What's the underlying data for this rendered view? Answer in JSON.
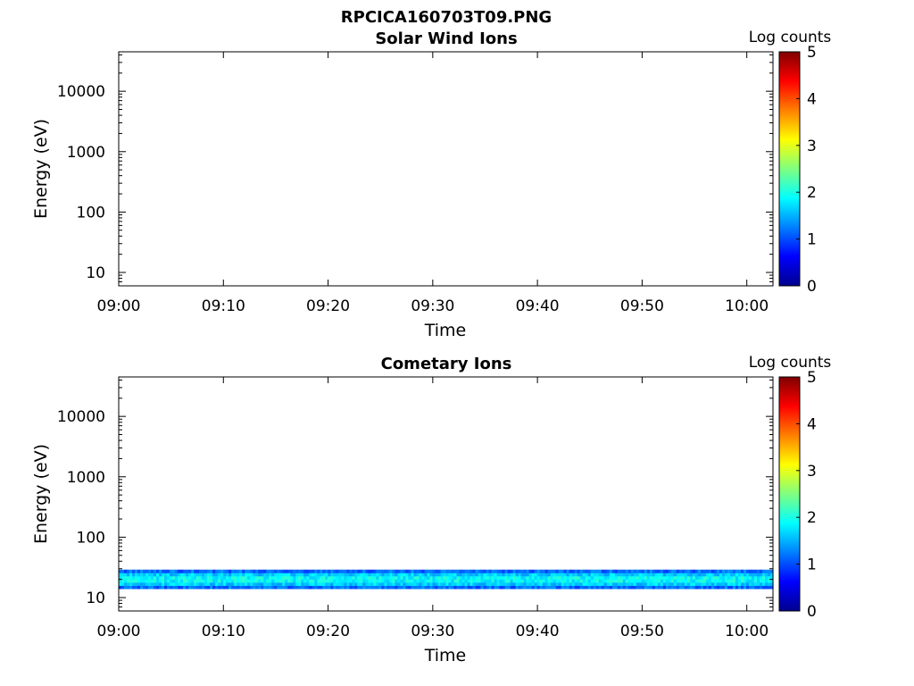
{
  "chart_data": {
    "title": "RPCICA160703T09.PNG",
    "type": "heatmap",
    "panels": [
      {
        "title": "Solar Wind Ions",
        "xlabel": "Time",
        "ylabel": "Energy (eV)",
        "x_tick_labels": [
          "09:00",
          "09:10",
          "09:20",
          "09:30",
          "09:40",
          "09:50",
          "10:00"
        ],
        "x_tick_minutes": [
          0,
          10,
          20,
          30,
          40,
          50,
          60
        ],
        "xlim_minutes": [
          0,
          62.5
        ],
        "y_scale": "log",
        "y_tick_labels": [
          "10",
          "100",
          "1000",
          "10000"
        ],
        "y_tick_values": [
          10,
          100,
          1000,
          10000
        ],
        "ylim": [
          6,
          45000
        ],
        "colorbar": {
          "label": "Log counts",
          "min": 0,
          "max": 5,
          "ticks": [
            "0",
            "1",
            "2",
            "3",
            "4",
            "5"
          ]
        },
        "bands": []
      },
      {
        "title": "Cometary Ions",
        "xlabel": "Time",
        "ylabel": "Energy (eV)",
        "x_tick_labels": [
          "09:00",
          "09:10",
          "09:20",
          "09:30",
          "09:40",
          "09:50",
          "10:00"
        ],
        "x_tick_minutes": [
          0,
          10,
          20,
          30,
          40,
          50,
          60
        ],
        "xlim_minutes": [
          0,
          62.5
        ],
        "y_scale": "log",
        "y_tick_labels": [
          "10",
          "100",
          "1000",
          "10000"
        ],
        "y_tick_values": [
          10,
          100,
          1000,
          10000
        ],
        "ylim": [
          6,
          45000
        ],
        "colorbar": {
          "label": "Log counts",
          "min": 0,
          "max": 5,
          "ticks": [
            "0",
            "1",
            "2",
            "3",
            "4",
            "5"
          ]
        },
        "bands": [
          {
            "energy_min": 14,
            "energy_max": 29,
            "time_start_minutes": 0,
            "time_end_minutes": 62.5,
            "log_counts_peak": 1.9,
            "log_counts_edge": 0.8
          }
        ]
      }
    ]
  },
  "colors": {
    "colormap": [
      "#00008f",
      "#0000ff",
      "#00ffff",
      "#ffff00",
      "#ff0000",
      "#800000"
    ]
  }
}
